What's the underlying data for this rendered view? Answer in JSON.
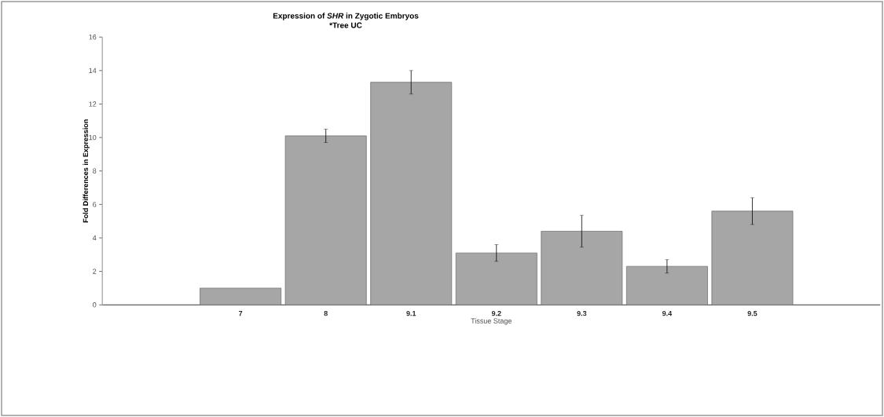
{
  "chart_data": {
    "type": "bar",
    "title": "Expression of *SHR* in Zygotic Embryos",
    "subtitle": "*Tree UC",
    "xlabel": "Tissue Stage",
    "ylabel": "Fold Differences in Expression",
    "categories": [
      null,
      "7",
      "8",
      "9.1",
      "9.2",
      "9.3",
      "9.4",
      "9.5",
      null
    ],
    "values": [
      null,
      1.0,
      10.1,
      13.3,
      3.1,
      4.4,
      2.3,
      5.6,
      null
    ],
    "errors": [
      null,
      null,
      0.4,
      0.7,
      0.5,
      0.95,
      0.4,
      0.8,
      null
    ],
    "color": "#a6a6a6",
    "ylim": [
      0,
      16
    ],
    "yticks": [
      0,
      2,
      4,
      6,
      8,
      10,
      12,
      14,
      16
    ],
    "grid": false
  }
}
